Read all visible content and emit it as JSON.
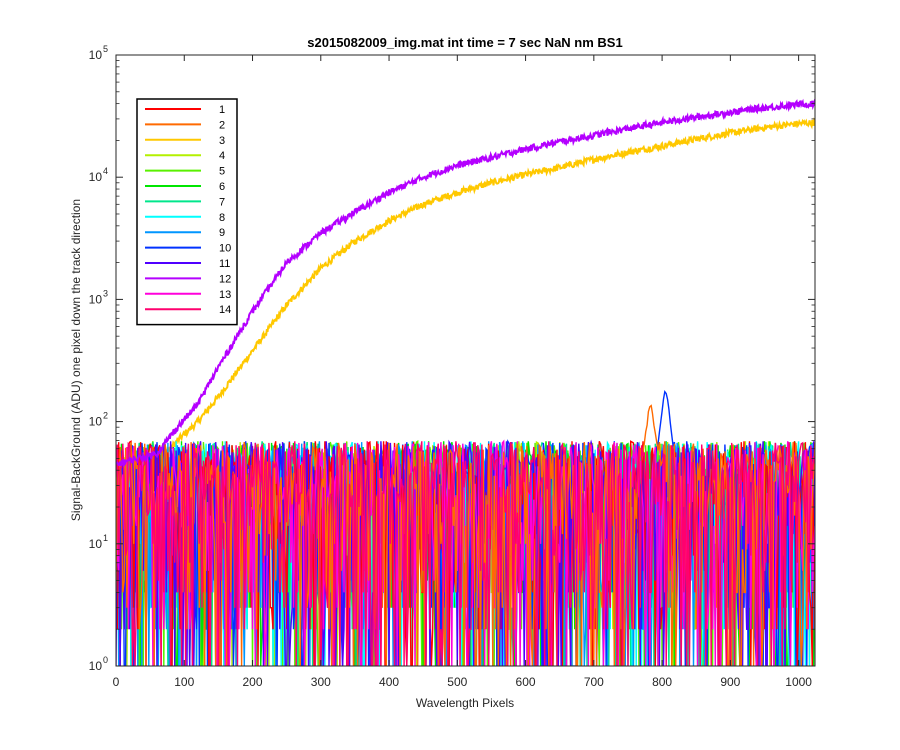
{
  "chart_data": {
    "type": "line",
    "title": "s2015082009_img.mat int time = 7 sec  NaN nm BS1",
    "xlabel": "Wavelength Pixels",
    "ylabel": "Signal-BackGround (ADU) one pixel down the track direction",
    "xlim": [
      0,
      1024
    ],
    "ylim": [
      1,
      100000
    ],
    "yscale": "log",
    "grid": false,
    "legend_position": "top-left",
    "x_ticks": [
      "0",
      "100",
      "200",
      "300",
      "400",
      "500",
      "600",
      "700",
      "800",
      "900",
      "1000"
    ],
    "y_ticks": [
      {
        "base": "10",
        "exp": "0"
      },
      {
        "base": "10",
        "exp": "1"
      },
      {
        "base": "10",
        "exp": "2"
      },
      {
        "base": "10",
        "exp": "3"
      },
      {
        "base": "10",
        "exp": "4"
      },
      {
        "base": "10",
        "exp": "5"
      }
    ],
    "series": [
      {
        "name": "1",
        "color": "#ff0000",
        "kind": "noise",
        "values_approx": "1-80 noisy"
      },
      {
        "name": "2",
        "color": "#ff6a00",
        "kind": "noise_peak",
        "peak": {
          "x": 783,
          "y": 160
        }
      },
      {
        "name": "3",
        "color": "#ffc800",
        "kind": "rising",
        "points": [
          [
            0,
            40
          ],
          [
            60,
            45
          ],
          [
            90,
            70
          ],
          [
            120,
            100
          ],
          [
            150,
            160
          ],
          [
            200,
            380
          ],
          [
            250,
            900
          ],
          [
            300,
            1800
          ],
          [
            350,
            3000
          ],
          [
            400,
            4400
          ],
          [
            450,
            6000
          ],
          [
            500,
            7500
          ],
          [
            550,
            9000
          ],
          [
            600,
            10500
          ],
          [
            650,
            12000
          ],
          [
            700,
            14000
          ],
          [
            750,
            16000
          ],
          [
            800,
            18000
          ],
          [
            850,
            20500
          ],
          [
            900,
            23000
          ],
          [
            950,
            25500
          ],
          [
            1000,
            27500
          ],
          [
            1024,
            28000
          ]
        ]
      },
      {
        "name": "4",
        "color": "#b4f000",
        "kind": "noise"
      },
      {
        "name": "5",
        "color": "#5af000",
        "kind": "noise"
      },
      {
        "name": "6",
        "color": "#00e600",
        "kind": "noise"
      },
      {
        "name": "7",
        "color": "#00e68c",
        "kind": "noise"
      },
      {
        "name": "8",
        "color": "#00ffff",
        "kind": "noise"
      },
      {
        "name": "9",
        "color": "#0096ff",
        "kind": "noise"
      },
      {
        "name": "10",
        "color": "#0032ff",
        "kind": "noise_peak",
        "peak": {
          "x": 805,
          "y": 210
        }
      },
      {
        "name": "11",
        "color": "#5000ff",
        "kind": "noise"
      },
      {
        "name": "12",
        "color": "#b400ff",
        "kind": "rising",
        "points": [
          [
            0,
            45
          ],
          [
            60,
            55
          ],
          [
            90,
            90
          ],
          [
            120,
            140
          ],
          [
            150,
            280
          ],
          [
            200,
            800
          ],
          [
            250,
            2000
          ],
          [
            300,
            3500
          ],
          [
            350,
            5200
          ],
          [
            400,
            7500
          ],
          [
            450,
            10000
          ],
          [
            500,
            12500
          ],
          [
            550,
            14500
          ],
          [
            600,
            17000
          ],
          [
            650,
            19500
          ],
          [
            700,
            22000
          ],
          [
            750,
            25000
          ],
          [
            800,
            28000
          ],
          [
            850,
            31000
          ],
          [
            900,
            34000
          ],
          [
            950,
            37000
          ],
          [
            1000,
            39500
          ],
          [
            1024,
            40000
          ]
        ]
      },
      {
        "name": "13",
        "color": "#ff00dc",
        "kind": "noise"
      },
      {
        "name": "14",
        "color": "#ff006e",
        "kind": "noise"
      }
    ]
  }
}
